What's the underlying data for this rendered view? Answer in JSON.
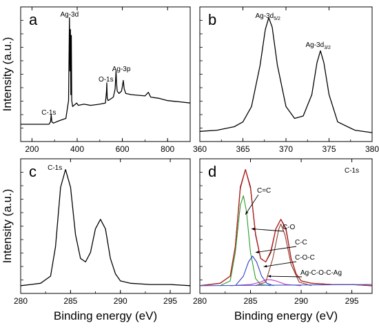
{
  "chart_data": [
    {
      "panel": "a",
      "type": "line",
      "xlim": [
        150,
        900
      ],
      "xticks": [
        200,
        400,
        600,
        800
      ],
      "ylabel": "Intensity (a.u.)",
      "xlabel": "",
      "grid": false,
      "annotations": [
        {
          "text": "Ag-3d",
          "x": 368
        },
        {
          "text": "O-1s",
          "x": 531
        },
        {
          "text": "Ag-3p",
          "x": 573
        },
        {
          "text": "C-1s",
          "x": 285
        }
      ],
      "series": [
        {
          "x": [
            150,
            200,
            250,
            275,
            282,
            285,
            288,
            295,
            320,
            350,
            362,
            366,
            368,
            370,
            372,
            374,
            376,
            380,
            392,
            398,
            405,
            430,
            460,
            500,
            525,
            530,
            531,
            533,
            537,
            545,
            560,
            568,
            572,
            574,
            577,
            585,
            596,
            600,
            604,
            608,
            615,
            640,
            700,
            715,
            725,
            760,
            800,
            850,
            900
          ],
          "y": [
            0.1,
            0.1,
            0.1,
            0.1,
            0.12,
            0.18,
            0.12,
            0.11,
            0.13,
            0.15,
            0.3,
            1.0,
            0.55,
            0.9,
            0.35,
            0.85,
            0.3,
            0.25,
            0.27,
            0.28,
            0.26,
            0.27,
            0.26,
            0.27,
            0.28,
            0.38,
            0.45,
            0.32,
            0.3,
            0.31,
            0.33,
            0.4,
            0.55,
            0.45,
            0.38,
            0.36,
            0.38,
            0.42,
            0.47,
            0.4,
            0.36,
            0.35,
            0.34,
            0.37,
            0.33,
            0.32,
            0.3,
            0.29,
            0.28
          ]
        }
      ]
    },
    {
      "panel": "b",
      "type": "line",
      "xlim": [
        360,
        380
      ],
      "xticks": [
        360,
        365,
        370,
        375,
        380
      ],
      "xlabel": "",
      "ylabel": "",
      "grid": false,
      "annotations": [
        {
          "text": "Ag-3d",
          "sub": "5/2",
          "x": 368.2
        },
        {
          "text": "Ag-3d",
          "sub": "3/2",
          "x": 374.2
        }
      ],
      "series": [
        {
          "x": [
            360,
            362,
            364,
            365,
            366,
            367,
            367.6,
            368,
            368.4,
            369,
            370,
            371,
            372,
            373,
            373.6,
            374,
            374.4,
            375,
            376,
            378,
            380
          ],
          "y": [
            0.04,
            0.05,
            0.08,
            0.12,
            0.25,
            0.6,
            0.9,
            1.0,
            0.92,
            0.6,
            0.25,
            0.15,
            0.17,
            0.35,
            0.62,
            0.72,
            0.62,
            0.35,
            0.12,
            0.05,
            0.03
          ]
        }
      ]
    },
    {
      "panel": "c",
      "type": "line",
      "xlim": [
        280,
        297
      ],
      "xticks": [
        280,
        285,
        290,
        295
      ],
      "xlabel": "Binding energy (eV)",
      "ylabel": "Intensity (a.u.)",
      "grid": false,
      "annotations": [
        {
          "text": "C-1s",
          "x": 284.5
        }
      ],
      "series": [
        {
          "x": [
            280,
            281,
            282,
            283,
            283.5,
            284,
            284.5,
            285,
            285.5,
            286,
            286.5,
            287,
            287.5,
            288,
            288.5,
            289,
            289.5,
            290,
            291,
            293,
            295,
            297
          ],
          "y": [
            0.02,
            0.03,
            0.04,
            0.1,
            0.35,
            0.85,
            1.0,
            0.85,
            0.45,
            0.25,
            0.22,
            0.3,
            0.5,
            0.58,
            0.5,
            0.25,
            0.12,
            0.06,
            0.04,
            0.03,
            0.03,
            0.02
          ]
        }
      ]
    },
    {
      "panel": "d",
      "type": "line",
      "xlim": [
        280,
        297
      ],
      "xticks": [
        280,
        285,
        290,
        295
      ],
      "xlabel": "Binding energy (eV)",
      "ylabel": "",
      "grid": false,
      "label_top_right": "C-1s",
      "annotations": [
        {
          "text": "C=C",
          "x": 284.5
        },
        {
          "text": "C-O",
          "x": 285.2
        },
        {
          "text": "C-C",
          "x": 288.0
        },
        {
          "text": "C-O-C",
          "x": 286.5
        },
        {
          "text": "Ag-C-O-C-Ag",
          "x": 287.5
        }
      ],
      "series": [
        {
          "color": "#000000",
          "x": [
            280,
            282,
            283,
            283.5,
            284,
            284.5,
            285,
            285.5,
            286,
            286.5,
            287,
            287.5,
            288,
            288.5,
            289,
            289.5,
            290,
            291,
            293,
            295,
            297
          ],
          "y": [
            0.02,
            0.04,
            0.1,
            0.35,
            0.85,
            1.0,
            0.85,
            0.45,
            0.25,
            0.22,
            0.3,
            0.5,
            0.58,
            0.5,
            0.25,
            0.12,
            0.06,
            0.04,
            0.03,
            0.03,
            0.02
          ]
        },
        {
          "color": "#d62020",
          "x": [
            280,
            282,
            283,
            283.5,
            284,
            284.5,
            285,
            285.5,
            286,
            286.5,
            287,
            287.5,
            288,
            288.5,
            289,
            289.5,
            290,
            291,
            293,
            295,
            297
          ],
          "y": [
            0.02,
            0.04,
            0.1,
            0.35,
            0.84,
            1.0,
            0.84,
            0.46,
            0.25,
            0.22,
            0.31,
            0.5,
            0.58,
            0.49,
            0.25,
            0.12,
            0.06,
            0.04,
            0.03,
            0.03,
            0.02
          ]
        },
        {
          "color": "#2a9a2a",
          "x": [
            282,
            283,
            283.5,
            284,
            284.3,
            284.6,
            285,
            285.5,
            286,
            287
          ],
          "y": [
            0.02,
            0.06,
            0.3,
            0.7,
            0.78,
            0.65,
            0.3,
            0.08,
            0.03,
            0.02
          ]
        },
        {
          "color": "#2a3ac8",
          "x": [
            283.5,
            284.3,
            284.8,
            285.2,
            285.6,
            286.1,
            286.6,
            287.3
          ],
          "y": [
            0.02,
            0.1,
            0.22,
            0.27,
            0.22,
            0.1,
            0.04,
            0.02
          ]
        },
        {
          "color": "#c030c0",
          "x": [
            283,
            285,
            286,
            286.5,
            287,
            287.5,
            288.5,
            290
          ],
          "y": [
            0.02,
            0.03,
            0.05,
            0.07,
            0.07,
            0.06,
            0.03,
            0.02
          ]
        },
        {
          "color": "#8b3a2a",
          "x": [
            285.5,
            286.5,
            287.2,
            287.8,
            288,
            288.4,
            289,
            289.8,
            291
          ],
          "y": [
            0.02,
            0.05,
            0.25,
            0.5,
            0.54,
            0.45,
            0.2,
            0.05,
            0.02
          ]
        },
        {
          "color": "#3a5ad0",
          "x": [
            280,
            297
          ],
          "y": [
            0.02,
            0.03
          ]
        }
      ]
    }
  ]
}
